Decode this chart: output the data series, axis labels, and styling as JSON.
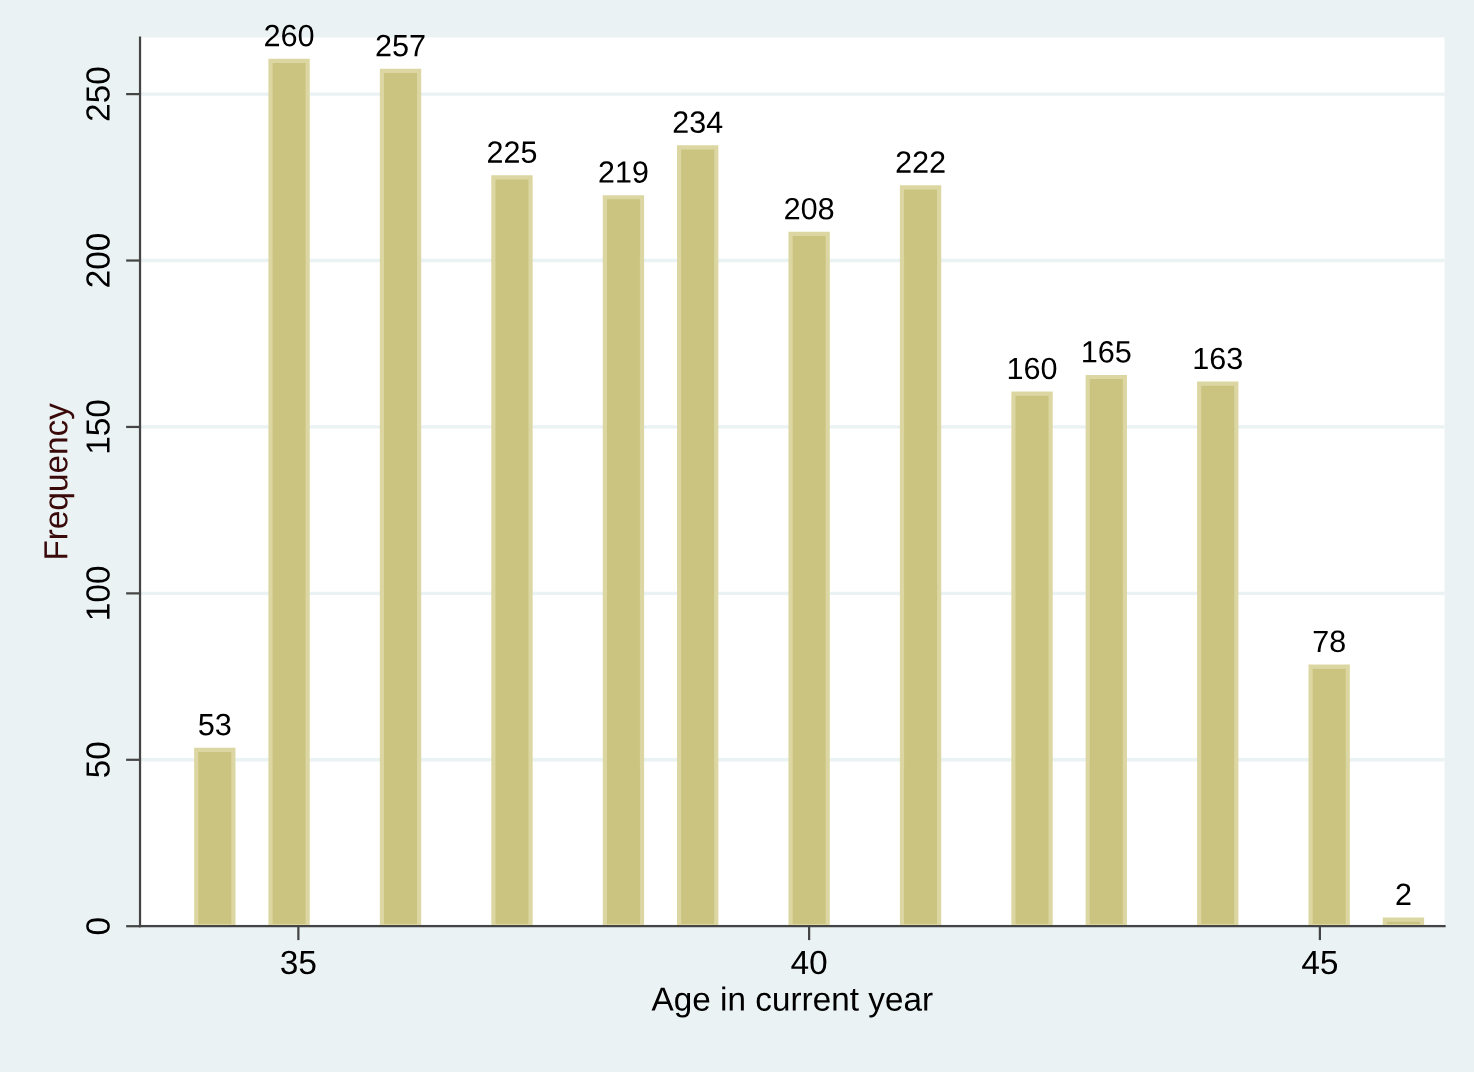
{
  "chart_data": {
    "type": "histogram",
    "xlabel": "Age in current year",
    "ylabel": "Frequency",
    "bins": [
      34,
      34.364,
      34.727,
      35.091,
      35.455,
      35.818,
      36.182,
      36.545,
      36.909,
      37.273,
      37.636,
      38,
      38.364,
      38.727,
      39.091,
      39.455,
      39.818,
      40.182,
      40.545,
      40.909,
      41.273,
      41.636,
      42,
      42.364,
      42.727,
      43.091,
      43.455,
      43.818,
      44.182,
      44.545,
      44.909,
      45.273,
      45.636,
      46
    ],
    "values": [
      53,
      0,
      260,
      0,
      0,
      257,
      0,
      0,
      225,
      0,
      0,
      219,
      0,
      234,
      0,
      0,
      208,
      0,
      0,
      222,
      0,
      0,
      160,
      0,
      165,
      0,
      0,
      163,
      0,
      0,
      78,
      0,
      2
    ],
    "value_labels": [
      "53",
      null,
      "260",
      null,
      null,
      "257",
      null,
      null,
      "225",
      null,
      null,
      "219",
      null,
      "234",
      null,
      null,
      "208",
      null,
      null,
      "222",
      null,
      null,
      "160",
      null,
      "165",
      null,
      null,
      "163",
      null,
      null,
      "78",
      null,
      "2"
    ],
    "color": "#cbc480",
    "xlim": [
      33.45,
      46.22
    ],
    "xticks": [
      35,
      40,
      45
    ],
    "ylim": [
      0,
      267
    ],
    "yticks": [
      0,
      50,
      100,
      150,
      200,
      250
    ],
    "grid": "y",
    "legend": false
  }
}
